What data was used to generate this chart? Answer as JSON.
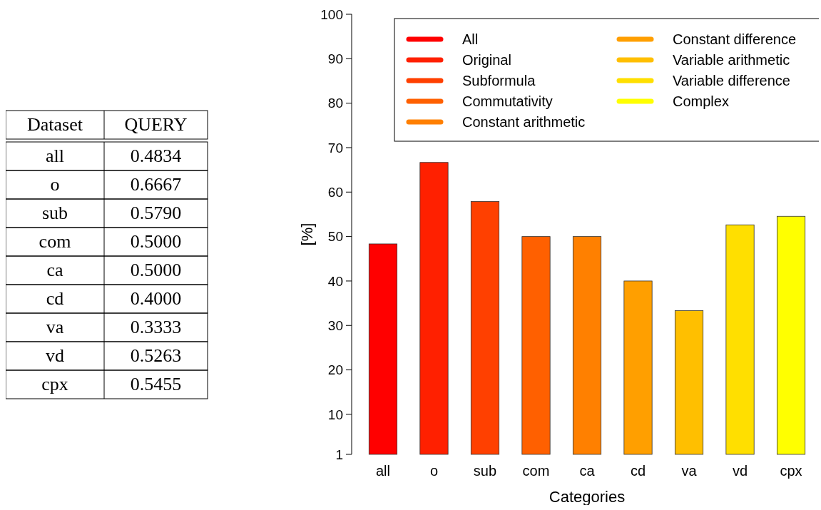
{
  "chart_data": {
    "type": "bar",
    "xlabel": "Categories",
    "ylabel": "[%]",
    "categories": [
      "all",
      "o",
      "sub",
      "com",
      "ca",
      "cd",
      "va",
      "vd",
      "cpx"
    ],
    "series": [
      {
        "name": "All",
        "color": "#ff0000",
        "values": [
          48.34,
          null,
          null,
          null,
          null,
          null,
          null,
          null,
          null
        ]
      },
      {
        "name": "Original",
        "color": "#ff2000",
        "values": [
          null,
          66.67,
          null,
          null,
          null,
          null,
          null,
          null,
          null
        ]
      },
      {
        "name": "Subformula",
        "color": "#ff4000",
        "values": [
          null,
          null,
          57.9,
          null,
          null,
          null,
          null,
          null,
          null
        ]
      },
      {
        "name": "Commutativity",
        "color": "#ff6000",
        "values": [
          null,
          null,
          null,
          50,
          null,
          null,
          null,
          null,
          null
        ]
      },
      {
        "name": "Constant arithmetic",
        "color": "#ff8000",
        "values": [
          null,
          null,
          null,
          null,
          50,
          null,
          null,
          null,
          null
        ]
      },
      {
        "name": "Constant difference",
        "color": "#ff9f00",
        "values": [
          null,
          null,
          null,
          null,
          null,
          40,
          null,
          null,
          null
        ]
      },
      {
        "name": "Variable arithmetic",
        "color": "#ffbf00",
        "values": [
          null,
          null,
          null,
          null,
          null,
          null,
          33.33,
          null,
          null
        ]
      },
      {
        "name": "Variable difference",
        "color": "#ffdf00",
        "values": [
          null,
          null,
          null,
          null,
          null,
          null,
          null,
          52.63,
          null
        ]
      },
      {
        "name": "Complex",
        "color": "#ffff00",
        "values": [
          null,
          null,
          null,
          null,
          null,
          null,
          null,
          null,
          54.55
        ]
      }
    ],
    "value_labels": [
      "0.4834",
      "0.6667",
      "0.5790",
      "0.5000",
      "0.5000",
      "0.4000",
      "0.3333",
      "0.5263",
      "0.5455"
    ],
    "annotations": [
      "Dataset",
      "QUERY"
    ],
    "ylim": [
      1,
      100
    ],
    "yticks": [
      1,
      10,
      20,
      30,
      40,
      50,
      60,
      70,
      80,
      90,
      100
    ],
    "legend": "top right",
    "grid": false
  }
}
